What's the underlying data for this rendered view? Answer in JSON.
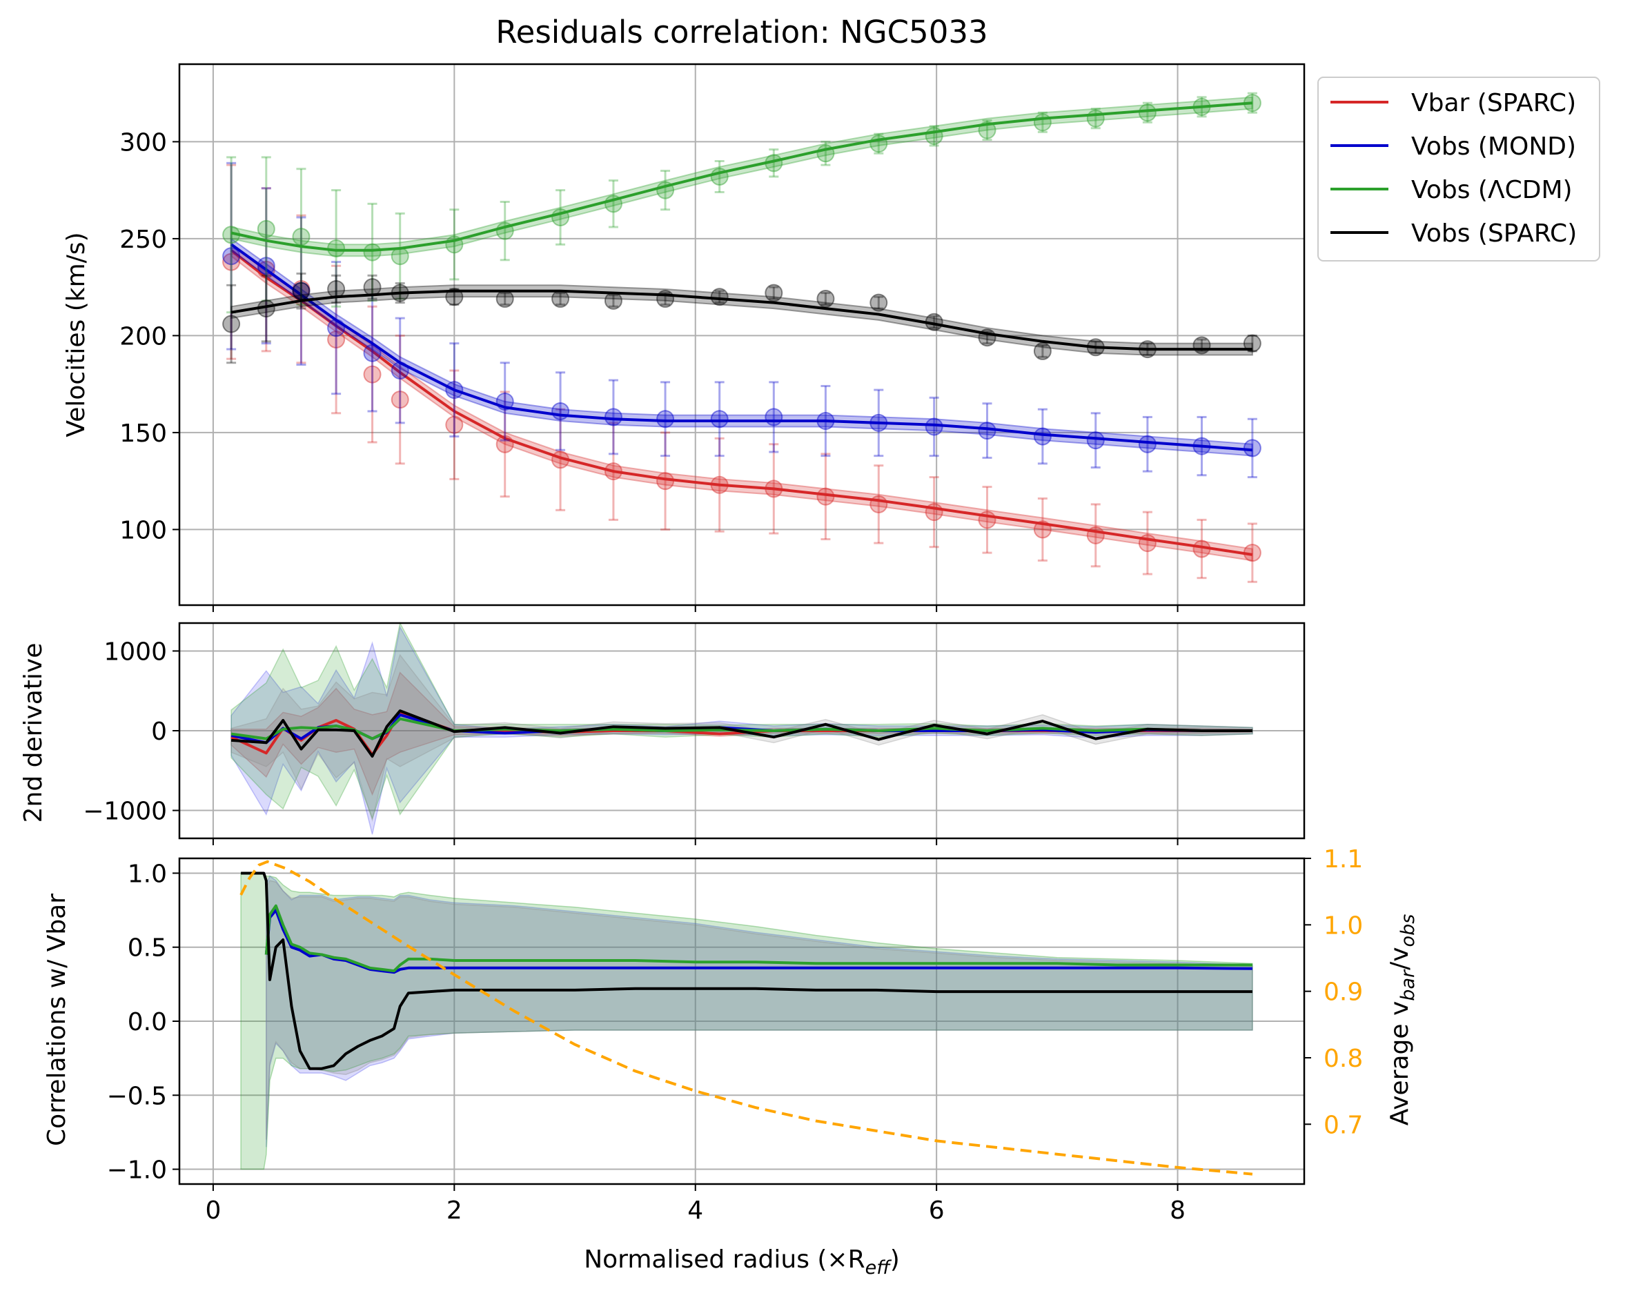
{
  "chart_data": [
    {
      "type": "line",
      "title": "Residuals correlation: NGC5033",
      "xlabel": "",
      "ylabel": "Velocities (km/s)",
      "xlim": [
        -0.28,
        9.05
      ],
      "ylim": [
        61,
        340
      ],
      "xticks": [
        0,
        2,
        4,
        6,
        8
      ],
      "yticks": [
        100,
        150,
        200,
        250,
        300
      ],
      "ytick_labels": [
        "100",
        "150",
        "200",
        "250",
        "300"
      ],
      "grid": true,
      "legend_position": "outside top-right",
      "legend": [
        "Vbar (SPARC)",
        "Vobs (MOND)",
        "Vobs (ΛCDM)",
        "Vobs (SPARC)"
      ],
      "x": [
        0.15,
        0.44,
        0.73,
        1.02,
        1.32,
        1.55,
        2.0,
        2.42,
        2.88,
        3.32,
        3.75,
        4.2,
        4.65,
        5.08,
        5.52,
        5.98,
        6.42,
        6.88,
        7.32,
        7.75,
        8.2,
        8.62
      ],
      "series": [
        {
          "name": "Vbar (SPARC)",
          "color": "#d62728",
          "points": [
            238,
            234,
            224,
            198,
            180,
            167,
            154,
            144,
            136,
            130,
            125,
            123,
            121,
            117,
            113,
            109,
            105,
            100,
            97,
            93,
            90,
            88
          ],
          "errors": [
            50,
            42,
            38,
            38,
            35,
            33,
            28,
            27,
            26,
            25,
            25,
            24,
            23,
            22,
            20,
            18,
            17,
            16,
            16,
            16,
            15,
            15
          ],
          "smooth": [
            244,
            230,
            218,
            205,
            192,
            181,
            161,
            147,
            137,
            130,
            126,
            123,
            121,
            118,
            115,
            111,
            107,
            103,
            99,
            95,
            91,
            87
          ]
        },
        {
          "name": "Vobs (MOND)",
          "color": "#0000cc",
          "points": [
            241,
            236,
            223,
            204,
            191,
            182,
            172,
            166,
            161,
            158,
            157,
            157,
            158,
            156,
            155,
            153,
            151,
            148,
            146,
            144,
            143,
            142
          ],
          "errors": [
            48,
            40,
            38,
            34,
            30,
            27,
            24,
            20,
            20,
            19,
            19,
            19,
            18,
            18,
            17,
            15,
            14,
            14,
            14,
            14,
            15,
            15
          ],
          "smooth": [
            247,
            234,
            221,
            208,
            196,
            186,
            172,
            163,
            159,
            157,
            156,
            156,
            156,
            156,
            155,
            154,
            152,
            149,
            147,
            145,
            143,
            141
          ]
        },
        {
          "name": "Vobs (ΛCDM)",
          "color": "#2ca02c",
          "points": [
            252,
            255,
            251,
            245,
            243,
            241,
            247,
            254,
            261,
            268,
            275,
            282,
            289,
            294,
            299,
            303,
            306,
            310,
            312,
            315,
            318,
            320
          ],
          "errors": [
            40,
            37,
            35,
            30,
            25,
            22,
            18,
            15,
            14,
            12,
            10,
            8,
            7,
            6,
            5,
            5,
            5,
            5,
            5,
            5,
            5,
            5
          ],
          "smooth": [
            253,
            249,
            246,
            244,
            244,
            245,
            249,
            256,
            263,
            270,
            277,
            284,
            290,
            296,
            301,
            305,
            309,
            312,
            314,
            316,
            318,
            320
          ]
        },
        {
          "name": "Vobs (SPARC)",
          "color": "#000000",
          "points": [
            206,
            214,
            223,
            224,
            225,
            222,
            220,
            219,
            219,
            218,
            219,
            220,
            222,
            219,
            217,
            207,
            199,
            192,
            194,
            193,
            195,
            196
          ],
          "errors": [
            20,
            17,
            9,
            7,
            6,
            5,
            4,
            3,
            3,
            3,
            3,
            3,
            3,
            3,
            3,
            3,
            3,
            3,
            3,
            3,
            3,
            4
          ],
          "smooth": [
            212,
            215,
            218,
            220,
            221,
            222,
            223,
            223,
            223,
            222,
            221,
            219,
            217,
            214,
            211,
            206,
            201,
            197,
            194,
            193,
            193,
            193
          ]
        }
      ]
    },
    {
      "type": "line",
      "title": "",
      "xlabel": "",
      "ylabel": "2nd derivative",
      "xlim": [
        -0.28,
        9.05
      ],
      "ylim": [
        -1350,
        1350
      ],
      "xticks": [
        0,
        2,
        4,
        6,
        8
      ],
      "yticks": [
        -1000,
        0,
        1000
      ],
      "ytick_labels": [
        "−1000",
        "0",
        "1000"
      ],
      "grid": true,
      "x": [
        0.15,
        0.44,
        0.58,
        0.73,
        0.87,
        1.02,
        1.17,
        1.32,
        1.44,
        1.55,
        2.0,
        2.42,
        2.88,
        3.32,
        3.75,
        4.2,
        4.65,
        5.08,
        5.52,
        5.98,
        6.42,
        6.88,
        7.32,
        7.75,
        8.2,
        8.62
      ],
      "series": [
        {
          "name": "Vbar (SPARC)",
          "color": "#d62728",
          "band_color": "#d62728",
          "values": [
            -80,
            -280,
            30,
            -120,
            40,
            130,
            20,
            -300,
            -60,
            230,
            0,
            0,
            -20,
            0,
            0,
            -40,
            0,
            0,
            0,
            0,
            0,
            0,
            0,
            0,
            0,
            0
          ],
          "errors": [
            100,
            300,
            200,
            300,
            250,
            400,
            250,
            500,
            300,
            500,
            50,
            40,
            40,
            40,
            30,
            30,
            30,
            30,
            30,
            30,
            30,
            30,
            30,
            30,
            30,
            20
          ]
        },
        {
          "name": "Vobs (MOND)",
          "color": "#0000cc",
          "band_color": "#4444ee",
          "values": [
            -60,
            -150,
            30,
            -100,
            40,
            60,
            10,
            -100,
            -20,
            200,
            0,
            -30,
            0,
            20,
            0,
            40,
            0,
            20,
            0,
            0,
            0,
            10,
            -20,
            10,
            0,
            0
          ],
          "errors": [
            250,
            900,
            450,
            650,
            300,
            700,
            400,
            1200,
            450,
            1100,
            80,
            50,
            50,
            60,
            50,
            80,
            60,
            70,
            60,
            60,
            60,
            60,
            70,
            70,
            60,
            40
          ]
        },
        {
          "name": "Vobs (ΛCDM)",
          "color": "#2ca02c",
          "band_color": "#2ca02c",
          "values": [
            -40,
            -100,
            20,
            40,
            30,
            60,
            10,
            -100,
            -10,
            150,
            0,
            20,
            0,
            20,
            0,
            10,
            0,
            20,
            0,
            30,
            0,
            30,
            0,
            20,
            0,
            0
          ],
          "errors": [
            300,
            700,
            1000,
            500,
            600,
            1000,
            500,
            1000,
            550,
            1200,
            80,
            60,
            80,
            60,
            80,
            60,
            80,
            60,
            80,
            60,
            60,
            60,
            60,
            60,
            60,
            40
          ]
        },
        {
          "name": "Vobs (SPARC)",
          "color": "#000000",
          "band_color": "#888888",
          "values": [
            -120,
            -150,
            130,
            -230,
            10,
            10,
            0,
            -320,
            50,
            250,
            -10,
            40,
            -30,
            50,
            30,
            40,
            -80,
            80,
            -110,
            70,
            -40,
            120,
            -100,
            20,
            0,
            0
          ],
          "errors": [
            150,
            300,
            400,
            500,
            300,
            600,
            400,
            800,
            400,
            700,
            80,
            60,
            60,
            60,
            60,
            60,
            70,
            60,
            70,
            60,
            60,
            80,
            70,
            60,
            60,
            40
          ]
        }
      ]
    },
    {
      "type": "line",
      "title": "",
      "xlabel": "Normalised radius (×R",
      "xlabel_sub": "eff",
      "xlabel_close": ")",
      "ylabel": "Correlations w/ Vbar",
      "xlim": [
        -0.28,
        9.05
      ],
      "ylim": [
        -1.1,
        1.1
      ],
      "xticks": [
        0,
        2,
        4,
        6,
        8
      ],
      "xtick_labels": [
        "0",
        "2",
        "4",
        "6",
        "8"
      ],
      "yticks": [
        -1.0,
        -0.5,
        0.0,
        0.5,
        1.0
      ],
      "ytick_labels": [
        "−1.0",
        "−0.5",
        "0.0",
        "0.5",
        "1.0"
      ],
      "grid": true,
      "x": [
        0.23,
        0.37,
        0.42,
        0.44,
        0.47,
        0.52,
        0.58,
        0.65,
        0.72,
        0.8,
        0.9,
        1.0,
        1.1,
        1.2,
        1.3,
        1.4,
        1.5,
        1.55,
        1.62,
        1.8,
        2.0,
        2.5,
        3.0,
        3.5,
        4.0,
        4.5,
        5.0,
        5.5,
        6.0,
        6.5,
        7.0,
        7.5,
        8.0,
        8.62
      ],
      "series": [
        {
          "name": "Vobs (MOND)",
          "color": "#0000cc",
          "band_color": "#5555ee",
          "values": [
            null,
            null,
            null,
            0.45,
            0.7,
            0.75,
            0.62,
            0.5,
            0.48,
            0.44,
            0.45,
            0.42,
            0.41,
            0.38,
            0.35,
            0.34,
            0.33,
            0.35,
            0.36,
            0.36,
            0.36,
            0.36,
            0.36,
            0.36,
            0.36,
            0.36,
            0.36,
            0.36,
            0.36,
            0.36,
            0.36,
            0.36,
            0.36,
            0.355
          ],
          "upper": [
            null,
            null,
            null,
            0.92,
            0.98,
            0.95,
            0.88,
            0.82,
            0.85,
            0.85,
            0.85,
            0.82,
            0.83,
            0.84,
            0.84,
            0.83,
            0.82,
            0.85,
            0.85,
            0.82,
            0.8,
            0.78,
            0.74,
            0.7,
            0.66,
            0.6,
            0.55,
            0.5,
            0.47,
            0.44,
            0.42,
            0.41,
            0.4,
            0.38
          ],
          "lower": [
            null,
            null,
            null,
            -0.85,
            -0.3,
            -0.15,
            -0.2,
            -0.3,
            -0.35,
            -0.35,
            -0.35,
            -0.37,
            -0.4,
            -0.35,
            -0.3,
            -0.28,
            -0.25,
            -0.2,
            -0.12,
            -0.1,
            -0.08,
            -0.07,
            -0.06,
            -0.06,
            -0.06,
            -0.06,
            -0.06,
            -0.06,
            -0.06,
            -0.06,
            -0.06,
            -0.06,
            -0.06,
            -0.06
          ]
        },
        {
          "name": "Vobs (ΛCDM)",
          "color": "#2ca02c",
          "band_color": "#2ca02c",
          "values": [
            null,
            null,
            null,
            0.45,
            0.72,
            0.78,
            0.65,
            0.52,
            0.5,
            0.46,
            0.45,
            0.43,
            0.42,
            0.39,
            0.36,
            0.35,
            0.34,
            0.38,
            0.42,
            0.42,
            0.41,
            0.41,
            0.41,
            0.41,
            0.4,
            0.4,
            0.39,
            0.39,
            0.39,
            0.39,
            0.39,
            0.38,
            0.38,
            0.38
          ],
          "upper": [
            1.0,
            1.0,
            1.0,
            0.98,
            0.98,
            0.97,
            0.92,
            0.88,
            0.87,
            0.87,
            0.86,
            0.85,
            0.85,
            0.85,
            0.85,
            0.85,
            0.84,
            0.86,
            0.87,
            0.85,
            0.83,
            0.8,
            0.77,
            0.73,
            0.69,
            0.64,
            0.58,
            0.53,
            0.49,
            0.46,
            0.43,
            0.42,
            0.41,
            0.39
          ],
          "lower": [
            -1.0,
            -1.0,
            -1.0,
            -0.9,
            -0.4,
            -0.25,
            -0.25,
            -0.3,
            -0.32,
            -0.32,
            -0.33,
            -0.34,
            -0.33,
            -0.3,
            -0.27,
            -0.25,
            -0.22,
            -0.18,
            -0.1,
            -0.09,
            -0.08,
            -0.07,
            -0.06,
            -0.06,
            -0.06,
            -0.06,
            -0.06,
            -0.06,
            -0.06,
            -0.06,
            -0.06,
            -0.06,
            -0.06,
            -0.06
          ]
        },
        {
          "name": "Vobs (SPARC)",
          "color": "#000000",
          "band_color": "#888888",
          "values": [
            1.0,
            1.0,
            1.0,
            0.95,
            0.28,
            0.5,
            0.55,
            0.1,
            -0.2,
            -0.32,
            -0.32,
            -0.3,
            -0.22,
            -0.17,
            -0.13,
            -0.1,
            -0.05,
            0.1,
            0.19,
            0.2,
            0.21,
            0.21,
            0.21,
            0.22,
            0.22,
            0.22,
            0.21,
            0.21,
            0.2,
            0.2,
            0.2,
            0.2,
            0.2,
            0.2
          ],
          "upper": [
            null,
            null,
            null,
            0.9,
            0.95,
            0.94,
            0.88,
            0.83,
            0.84,
            0.84,
            0.84,
            0.81,
            0.82,
            0.83,
            0.83,
            0.82,
            0.81,
            0.84,
            0.84,
            0.81,
            0.79,
            0.77,
            0.73,
            0.69,
            0.65,
            0.59,
            0.54,
            0.49,
            0.46,
            0.43,
            0.41,
            0.4,
            0.39,
            0.37
          ],
          "lower": [
            null,
            null,
            null,
            -0.8,
            -0.28,
            -0.14,
            -0.2,
            -0.28,
            -0.32,
            -0.32,
            -0.33,
            -0.35,
            -0.36,
            -0.33,
            -0.28,
            -0.26,
            -0.23,
            -0.19,
            -0.11,
            -0.09,
            -0.08,
            -0.07,
            -0.06,
            -0.06,
            -0.06,
            -0.06,
            -0.06,
            -0.06,
            -0.06,
            -0.06,
            -0.06,
            -0.06,
            -0.06,
            -0.06
          ]
        }
      ],
      "secondary_axis": {
        "ylabel_prefix": "Average v",
        "ylabel_sub1": "bar",
        "ylabel_mid": "/v",
        "ylabel_sub2": "obs",
        "color": "#ffa500",
        "ylim": [
          0.61,
          1.1
        ],
        "yticks": [
          0.7,
          0.8,
          0.9,
          1.0,
          1.1
        ],
        "ytick_labels": [
          "0.7",
          "0.8",
          "0.9",
          "1.0",
          "1.1"
        ],
        "style": "dashed",
        "x": [
          0.23,
          0.3,
          0.38,
          0.45,
          0.6,
          0.8,
          1.0,
          1.3,
          1.6,
          2.0,
          2.5,
          3.0,
          3.5,
          4.0,
          4.5,
          5.0,
          5.5,
          6.0,
          6.5,
          7.0,
          7.5,
          8.0,
          8.62
        ],
        "values": [
          1.045,
          1.07,
          1.09,
          1.095,
          1.085,
          1.065,
          1.04,
          1.005,
          0.97,
          0.925,
          0.87,
          0.82,
          0.78,
          0.75,
          0.725,
          0.705,
          0.69,
          0.675,
          0.665,
          0.655,
          0.645,
          0.635,
          0.625
        ]
      }
    }
  ]
}
